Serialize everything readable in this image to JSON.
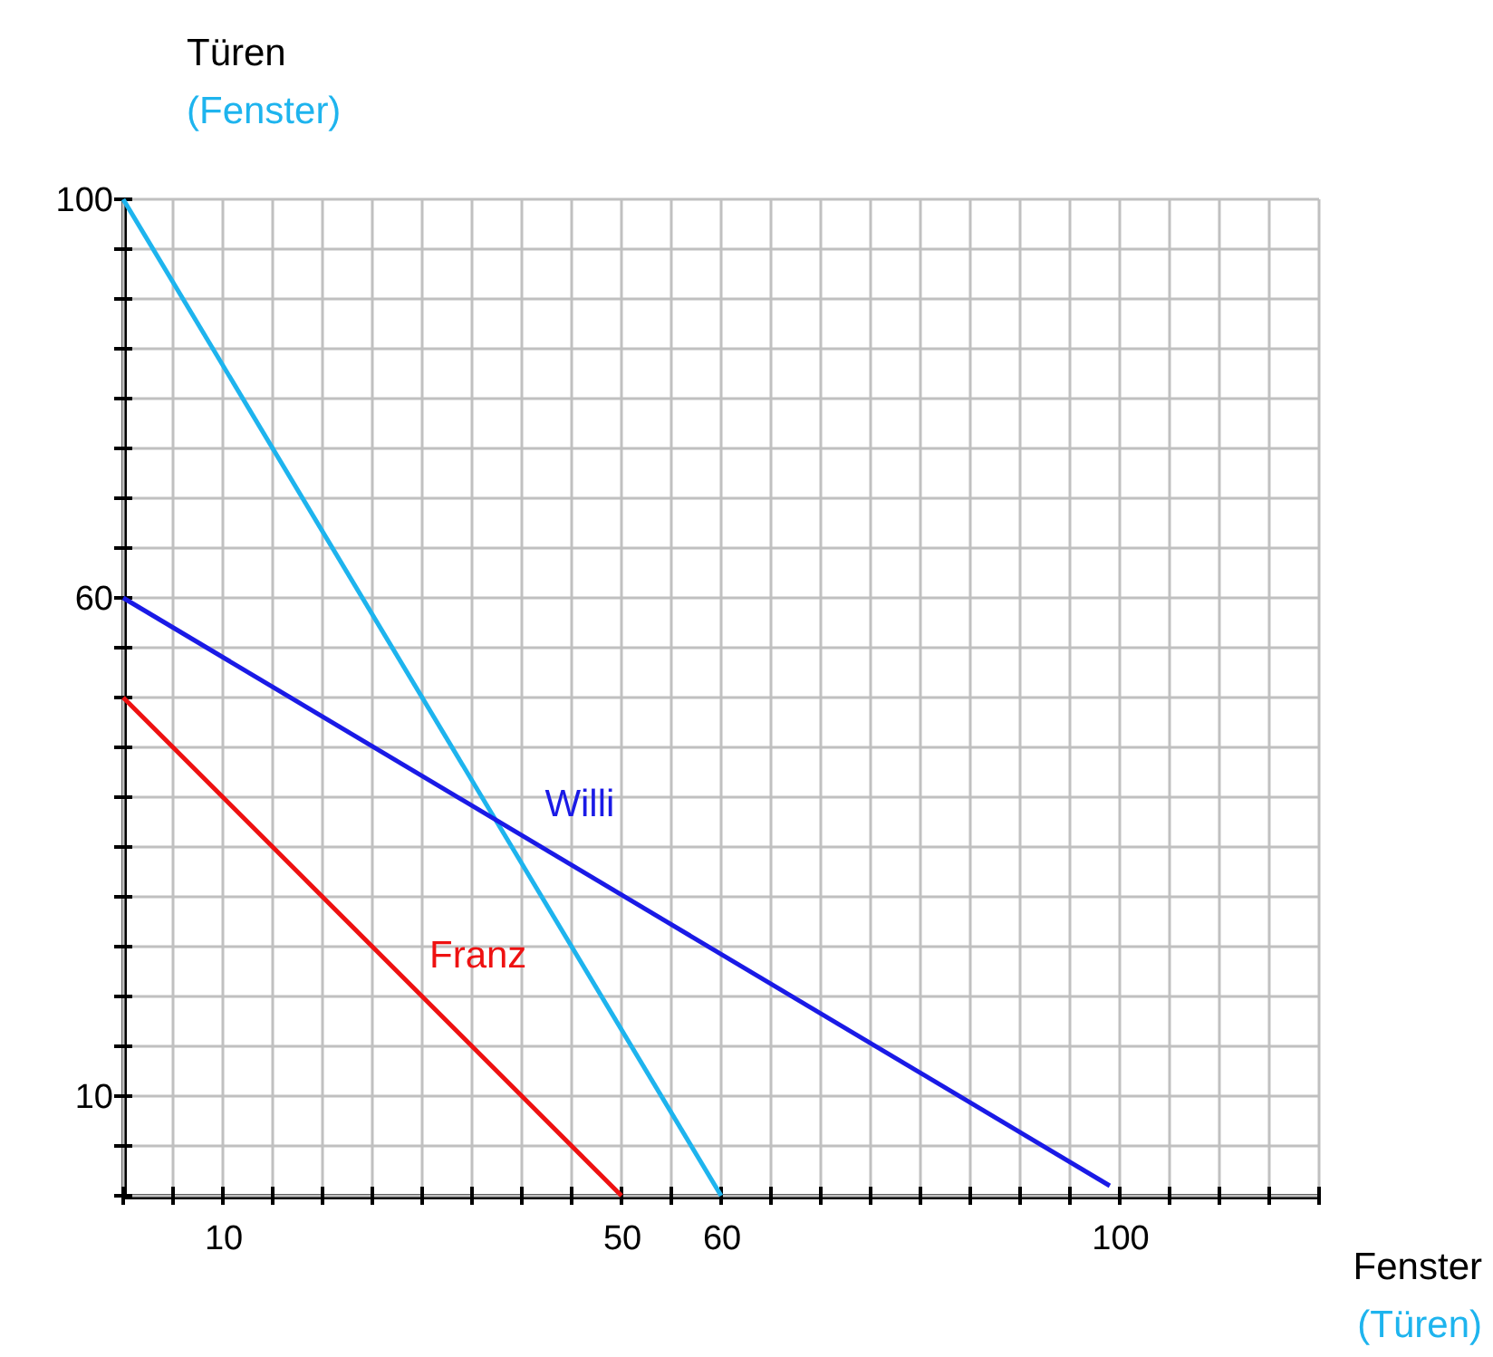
{
  "chart_data": {
    "type": "line",
    "xlabel": "Fenster",
    "ylabel": "Türen",
    "annotations": [
      "(Türen)",
      "(Fenster)"
    ],
    "series": [
      {
        "color": "#1eb4ee",
        "x": [
          0,
          60
        ],
        "values": [
          100,
          0
        ]
      },
      {
        "name": "Willi",
        "color": "#1a1ae6",
        "x": [
          0,
          99
        ],
        "values": [
          60,
          1
        ]
      },
      {
        "name": "Franz",
        "color": "#ee1111",
        "x": [
          0,
          50
        ],
        "values": [
          50,
          0
        ]
      }
    ],
    "xlim": [
      0,
      120
    ],
    "ylim": [
      0,
      100
    ],
    "xticks": [
      {
        "value": 0,
        "label": null
      },
      {
        "value": 5,
        "label": null
      },
      10,
      {
        "value": 15,
        "label": null
      },
      {
        "value": 20,
        "label": null
      },
      {
        "value": 25,
        "label": null
      },
      {
        "value": 30,
        "label": null
      },
      {
        "value": 35,
        "label": null
      },
      {
        "value": 40,
        "label": null
      },
      {
        "value": 45,
        "label": null
      },
      50,
      {
        "value": 55,
        "label": null
      },
      60,
      {
        "value": 65,
        "label": null
      },
      {
        "value": 70,
        "label": null
      },
      {
        "value": 75,
        "label": null
      },
      {
        "value": 80,
        "label": null
      },
      {
        "value": 85,
        "label": null
      },
      {
        "value": 90,
        "label": null
      },
      {
        "value": 95,
        "label": null
      },
      100,
      {
        "value": 105,
        "label": null
      },
      {
        "value": 110,
        "label": null
      },
      {
        "value": 115,
        "label": null
      },
      {
        "value": 120,
        "label": null
      }
    ],
    "yticks": [
      {
        "value": 0,
        "label": null
      },
      {
        "value": 5,
        "label": null
      },
      10,
      {
        "value": 15,
        "label": null
      },
      {
        "value": 20,
        "label": null
      },
      {
        "value": 25,
        "label": null
      },
      {
        "value": 30,
        "label": null
      },
      {
        "value": 35,
        "label": null
      },
      {
        "value": 40,
        "label": null
      },
      {
        "value": 45,
        "label": null
      },
      {
        "value": 50,
        "label": null
      },
      {
        "value": 55,
        "label": null
      },
      60,
      {
        "value": 65,
        "label": null
      },
      {
        "value": 70,
        "label": null
      },
      {
        "value": 75,
        "label": null
      },
      {
        "value": 80,
        "label": null
      },
      {
        "value": 85,
        "label": null
      },
      {
        "value": 90,
        "label": null
      },
      {
        "value": 95,
        "label": null
      },
      100
    ],
    "grid": true,
    "marker": "none",
    "line_style": "solid"
  }
}
